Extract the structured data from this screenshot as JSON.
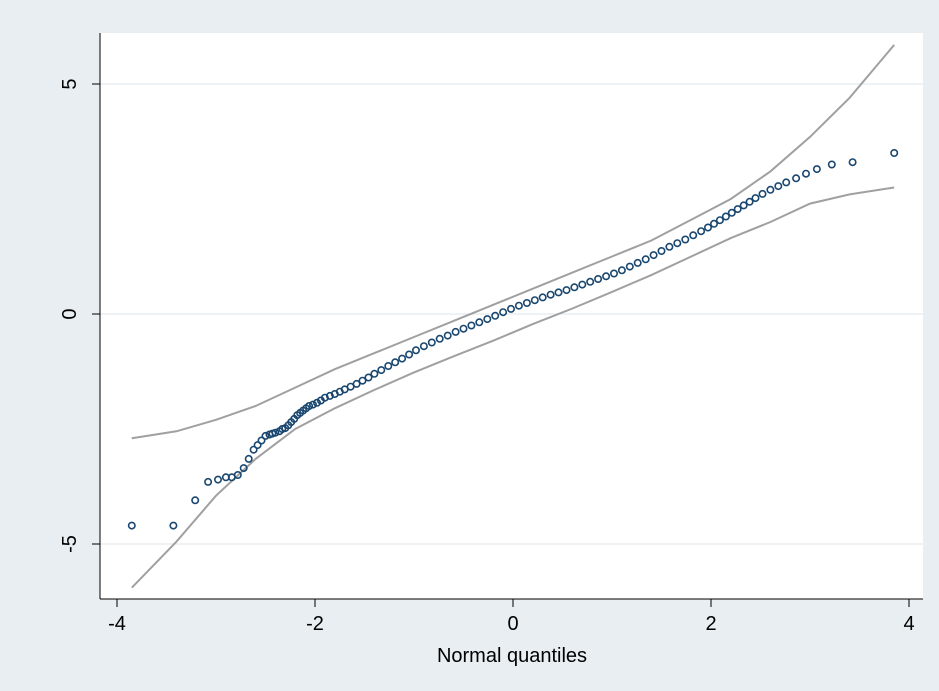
{
  "colors": {
    "outer_background": "#e8eef2",
    "plot_background": "#ffffff",
    "gridline": "#e8eef2",
    "axis": "#000000",
    "points": "#1a476f",
    "bands": "#a0a0a0"
  },
  "chart_data": {
    "type": "scatter",
    "title": "",
    "xlabel": "Normal quantiles",
    "ylabel": "",
    "xlim": [
      -4.2,
      4.2
    ],
    "ylim": [
      -6.3,
      6.0
    ],
    "x_ticks": [
      -4,
      -2,
      0,
      2,
      4
    ],
    "y_ticks": [
      -5,
      0,
      5
    ],
    "x_tick_labels": [
      "-4",
      "-2",
      "0",
      "2",
      "4"
    ],
    "y_tick_labels": [
      "-5",
      "0",
      "5"
    ],
    "grid": true,
    "legend": "none",
    "series": [
      {
        "kind": "points",
        "marker": "hollow-circle",
        "x": [
          -3.85,
          -3.43,
          -3.21,
          -3.08,
          -2.98,
          -2.9,
          -2.84,
          -2.78,
          -2.72,
          -2.67,
          -2.62,
          -2.58,
          -2.54,
          -2.5,
          -2.46,
          -2.43,
          -2.4,
          -2.36,
          -2.33,
          -2.3,
          -2.27,
          -2.24,
          -2.21,
          -2.18,
          -2.15,
          -2.12,
          -2.09,
          -2.06,
          -2.02,
          -1.98,
          -1.94,
          -1.9,
          -1.85,
          -1.8,
          -1.75,
          -1.7,
          -1.64,
          -1.58,
          -1.52,
          -1.46,
          -1.4,
          -1.33,
          -1.26,
          -1.19,
          -1.12,
          -1.05,
          -0.98,
          -0.9,
          -0.82,
          -0.74,
          -0.66,
          -0.58,
          -0.5,
          -0.42,
          -0.34,
          -0.26,
          -0.18,
          -0.1,
          -0.02,
          0.06,
          0.14,
          0.22,
          0.3,
          0.38,
          0.46,
          0.54,
          0.62,
          0.7,
          0.78,
          0.86,
          0.94,
          1.02,
          1.1,
          1.18,
          1.26,
          1.34,
          1.42,
          1.5,
          1.58,
          1.66,
          1.74,
          1.82,
          1.9,
          1.97,
          2.03,
          2.09,
          2.15,
          2.21,
          2.27,
          2.33,
          2.39,
          2.45,
          2.52,
          2.6,
          2.68,
          2.76,
          2.86,
          2.96,
          3.07,
          3.22,
          3.43,
          3.85
        ],
        "y": [
          -4.6,
          -4.6,
          -4.05,
          -3.65,
          -3.6,
          -3.55,
          -3.55,
          -3.5,
          -3.35,
          -3.15,
          -2.95,
          -2.85,
          -2.75,
          -2.65,
          -2.62,
          -2.6,
          -2.58,
          -2.55,
          -2.5,
          -2.48,
          -2.42,
          -2.35,
          -2.28,
          -2.2,
          -2.15,
          -2.1,
          -2.05,
          -2.0,
          -1.97,
          -1.93,
          -1.88,
          -1.82,
          -1.78,
          -1.74,
          -1.69,
          -1.64,
          -1.58,
          -1.52,
          -1.45,
          -1.38,
          -1.3,
          -1.22,
          -1.13,
          -1.05,
          -0.97,
          -0.88,
          -0.79,
          -0.7,
          -0.62,
          -0.54,
          -0.47,
          -0.39,
          -0.32,
          -0.25,
          -0.18,
          -0.11,
          -0.04,
          0.04,
          0.11,
          0.18,
          0.24,
          0.3,
          0.36,
          0.42,
          0.47,
          0.52,
          0.58,
          0.64,
          0.7,
          0.76,
          0.82,
          0.88,
          0.95,
          1.03,
          1.11,
          1.19,
          1.28,
          1.37,
          1.46,
          1.54,
          1.62,
          1.71,
          1.8,
          1.88,
          1.96,
          2.04,
          2.12,
          2.2,
          2.28,
          2.36,
          2.44,
          2.52,
          2.61,
          2.7,
          2.78,
          2.86,
          2.95,
          3.05,
          3.15,
          3.25,
          3.3,
          3.5
        ]
      },
      {
        "kind": "line",
        "x": [
          -3.85,
          -3.4,
          -3.0,
          -2.6,
          -2.2,
          -1.8,
          -1.4,
          -1.0,
          -0.6,
          -0.2,
          0.2,
          0.6,
          1.0,
          1.4,
          1.8,
          2.2,
          2.6,
          3.0,
          3.4,
          3.85
        ],
        "y": [
          -2.7,
          -2.55,
          -2.3,
          -2.0,
          -1.6,
          -1.2,
          -0.85,
          -0.5,
          -0.15,
          0.2,
          0.55,
          0.9,
          1.25,
          1.6,
          2.05,
          2.5,
          3.1,
          3.85,
          4.7,
          5.85
        ]
      },
      {
        "kind": "line",
        "x": [
          -3.85,
          -3.4,
          -3.0,
          -2.6,
          -2.2,
          -1.8,
          -1.4,
          -1.0,
          -0.6,
          -0.2,
          0.2,
          0.6,
          1.0,
          1.4,
          1.8,
          2.2,
          2.6,
          3.0,
          3.4,
          3.85
        ],
        "y": [
          -5.95,
          -4.95,
          -3.95,
          -3.15,
          -2.5,
          -2.05,
          -1.65,
          -1.27,
          -0.92,
          -0.58,
          -0.22,
          0.12,
          0.48,
          0.85,
          1.25,
          1.65,
          2.0,
          2.4,
          2.6,
          2.75
        ]
      }
    ]
  }
}
